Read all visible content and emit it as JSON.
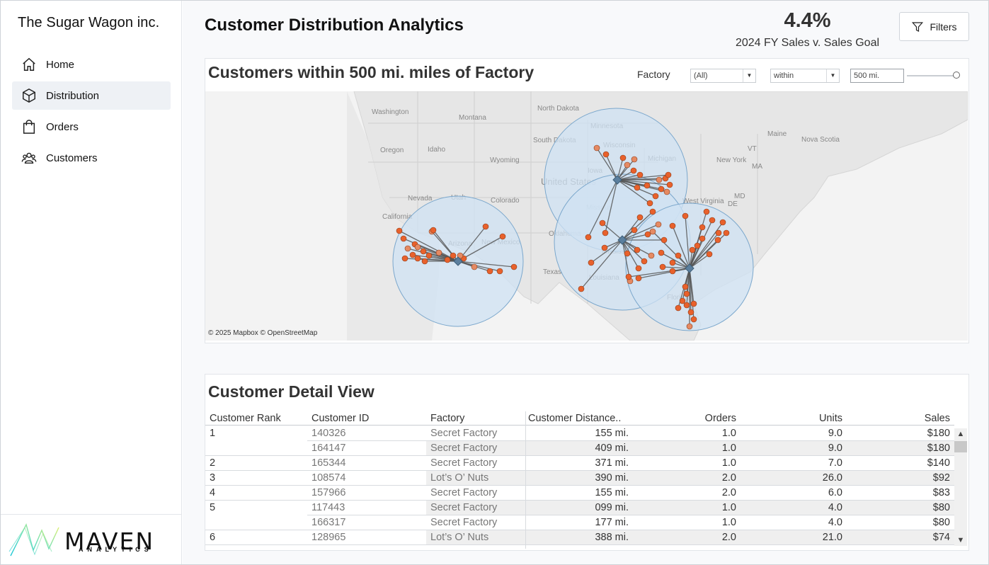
{
  "sidebar": {
    "brand": "The Sugar Wagon inc.",
    "items": [
      {
        "label": "Home",
        "icon": "home-icon"
      },
      {
        "label": "Distribution",
        "icon": "box-icon",
        "active": true
      },
      {
        "label": "Orders",
        "icon": "shopping-bag-icon"
      },
      {
        "label": "Customers",
        "icon": "users-icon"
      }
    ],
    "logo": {
      "word": "MAVEN",
      "sub": "ANALYTICS"
    }
  },
  "header": {
    "title": "Customer Distribution Analytics",
    "kpi_value": "4.4%",
    "kpi_label": "2024 FY Sales v. Sales Goal",
    "filters_label": "Filters"
  },
  "map": {
    "title": "Customers within 500 mi. miles of Factory",
    "factory_label": "Factory",
    "factory_value": "(All)",
    "operator_value": "within",
    "distance_value": "500 mi.",
    "attribution": "© 2025 Mapbox © OpenStreetMap",
    "labels": [
      "Washington",
      "Montana",
      "North Dakota",
      "Minnesota",
      "Oregon",
      "Idaho",
      "South Dakota",
      "Wyoming",
      "Wisconsin",
      "Michigan",
      "Iowa",
      "United States",
      "Nevada",
      "Utah",
      "Colorado",
      "California",
      "Arizona",
      "New Mexico",
      "Missouri",
      "Oklahoma",
      "Mississippi",
      "Texas",
      "Louisiana",
      "Maine",
      "Nova Scotia",
      "VT",
      "New York",
      "MA",
      "MD",
      "DE",
      "West Virginia",
      "Florida"
    ],
    "colors": {
      "circle_fill": "#cfe2f3",
      "circle_stroke": "#7ba7cc",
      "point": "#e8612c",
      "line": "#555555",
      "land": "#e8e8e8",
      "water": "#f5f5f5"
    }
  },
  "table": {
    "title": "Customer Detail View",
    "columns": [
      "Customer Rank",
      "Customer ID",
      "Factory",
      "Customer Distance..",
      "Orders",
      "Units",
      "Sales"
    ],
    "rows": [
      {
        "rank": "1",
        "id": "140326",
        "factory": "Secret Factory",
        "distance": "155 mi.",
        "orders": "1.0",
        "units": "9.0",
        "sales": "$180"
      },
      {
        "rank": "",
        "id": "164147",
        "factory": "Secret Factory",
        "distance": "409 mi.",
        "orders": "1.0",
        "units": "9.0",
        "sales": "$180"
      },
      {
        "rank": "2",
        "id": "165344",
        "factory": "Secret Factory",
        "distance": "371 mi.",
        "orders": "1.0",
        "units": "7.0",
        "sales": "$140"
      },
      {
        "rank": "3",
        "id": "108574",
        "factory": "Lot’s O’ Nuts",
        "distance": "390 mi.",
        "orders": "2.0",
        "units": "26.0",
        "sales": "$92"
      },
      {
        "rank": "4",
        "id": "157966",
        "factory": "Secret Factory",
        "distance": "155 mi.",
        "orders": "2.0",
        "units": "6.0",
        "sales": "$83"
      },
      {
        "rank": "5",
        "id": "117443",
        "factory": "Secret Factory",
        "distance": "099 mi.",
        "orders": "1.0",
        "units": "4.0",
        "sales": "$80"
      },
      {
        "rank": "",
        "id": "166317",
        "factory": "Secret Factory",
        "distance": "177 mi.",
        "orders": "1.0",
        "units": "4.0",
        "sales": "$80"
      },
      {
        "rank": "6",
        "id": "128965",
        "factory": "Lot’s O’ Nuts",
        "distance": "388 mi.",
        "orders": "2.0",
        "units": "21.0",
        "sales": "$74"
      }
    ]
  }
}
